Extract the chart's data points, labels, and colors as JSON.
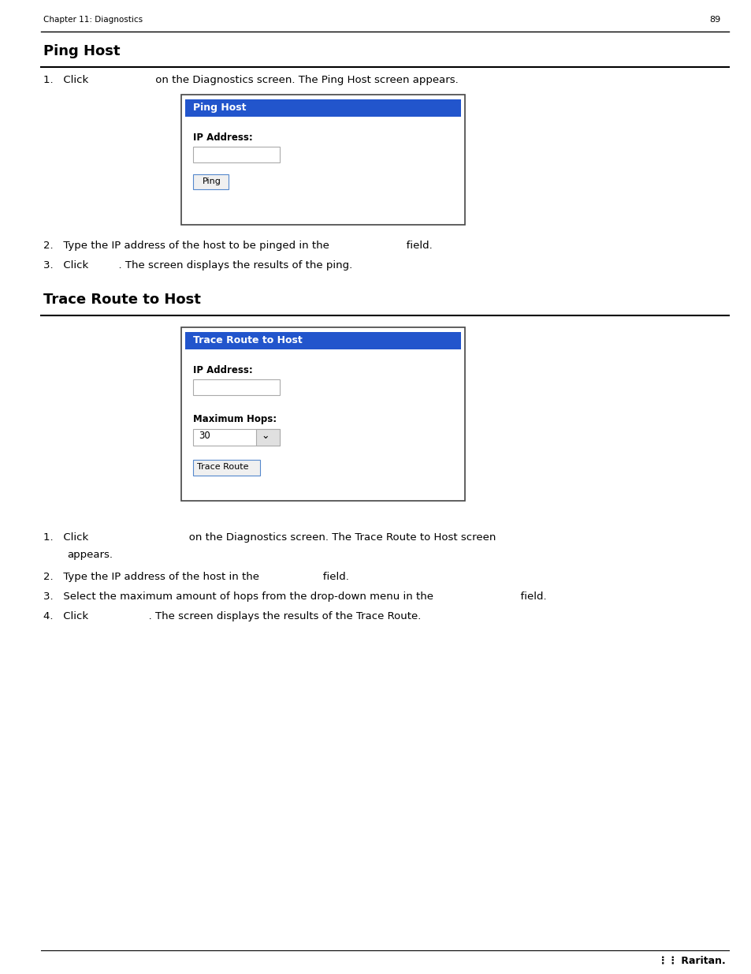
{
  "bg_color": "#ffffff",
  "page_width": 9.54,
  "page_height": 12.35,
  "header_text": "Chapter 11: Diagnostics",
  "header_page": "89",
  "section1_title": "Ping Host",
  "section2_title": "Trace Route to Host",
  "blue_header_color": "#2255cc",
  "box_border_color": "#444444",
  "button_border_color": "#5588cc",
  "text_input_border": "#aaaaaa",
  "text_color": "#000000",
  "white": "#ffffff",
  "light_gray": "#f0f0f0",
  "dropdown_gray": "#e0e0e0"
}
